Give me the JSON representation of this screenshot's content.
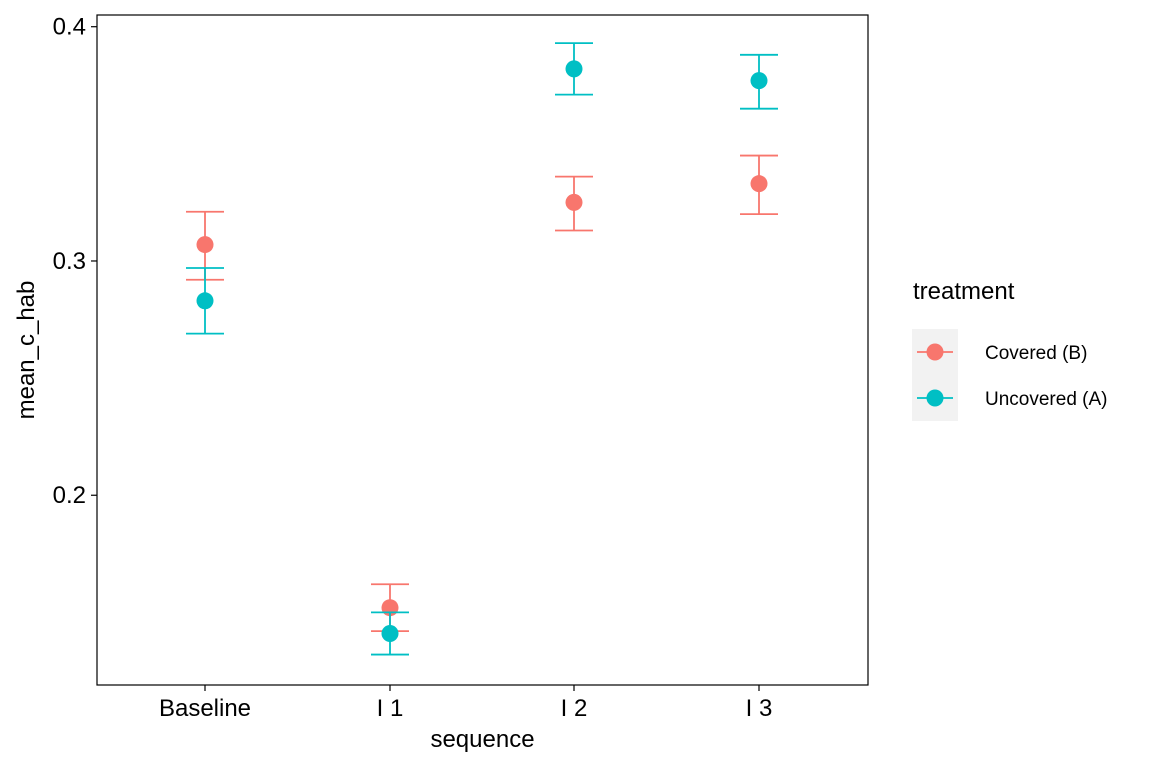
{
  "chart_data": {
    "type": "scatter",
    "title": "",
    "xlabel": "sequence",
    "ylabel": "mean_c_hab",
    "categories": [
      "Baseline",
      "I 1",
      "I 2",
      "I 3"
    ],
    "ylim": [
      0.119,
      0.405
    ],
    "yticks": [
      0.2,
      0.3,
      0.4
    ],
    "ytick_labels": [
      "0.2",
      "0.3",
      "0.4"
    ],
    "grid": false,
    "legend": {
      "title": "treatment",
      "position": "right"
    },
    "series": [
      {
        "name": "Covered (B)",
        "color": "#F8766D",
        "values": [
          0.307,
          0.152,
          0.325,
          0.333
        ],
        "lower": [
          0.292,
          0.142,
          0.313,
          0.32
        ],
        "upper": [
          0.321,
          0.162,
          0.336,
          0.345
        ]
      },
      {
        "name": "Uncovered (A)",
        "color": "#00BFC4",
        "values": [
          0.283,
          0.141,
          0.382,
          0.377
        ],
        "lower": [
          0.269,
          0.132,
          0.371,
          0.365
        ],
        "upper": [
          0.297,
          0.15,
          0.393,
          0.388
        ]
      }
    ]
  }
}
